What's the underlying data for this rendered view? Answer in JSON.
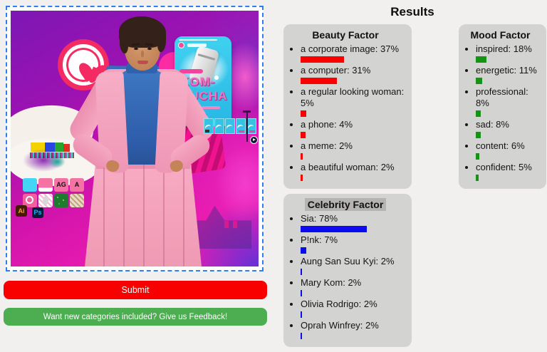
{
  "header": {
    "title": "Results"
  },
  "panels": [
    {
      "id": "beauty",
      "title": "Beauty Factor",
      "bar_color": "#f80100",
      "highlighted": false,
      "items": [
        {
          "label": "a corporate image",
          "pct": 37
        },
        {
          "label": "a computer",
          "pct": 31
        },
        {
          "label": "a regular looking woman",
          "pct": 5
        },
        {
          "label": "a phone",
          "pct": 4
        },
        {
          "label": "a meme",
          "pct": 2
        },
        {
          "label": "a beautiful woman",
          "pct": 2
        }
      ]
    },
    {
      "id": "mood",
      "title": "Mood Factor",
      "bar_color": "#149314",
      "highlighted": false,
      "items": [
        {
          "label": "inspired",
          "pct": 18
        },
        {
          "label": "energetic",
          "pct": 11
        },
        {
          "label": "professional",
          "pct": 8
        },
        {
          "label": "sad",
          "pct": 8
        },
        {
          "label": "content",
          "pct": 6
        },
        {
          "label": "confident",
          "pct": 5
        }
      ]
    },
    {
      "id": "celebrity",
      "title": "Celebrity Factor",
      "bar_color": "#0b0bf0",
      "highlighted": true,
      "items": [
        {
          "label": "Sia",
          "pct": 78
        },
        {
          "label": "P!nk",
          "pct": 7
        },
        {
          "label": "Aung San Suu Kyi",
          "pct": 2
        },
        {
          "label": "Mary Kom",
          "pct": 2
        },
        {
          "label": "Olivia Rodrigo",
          "pct": 2
        },
        {
          "label": "Oprah Winfrey",
          "pct": 2
        }
      ]
    }
  ],
  "buttons": {
    "submit_label": "Submit",
    "submit_color": "#f90000",
    "feedback_label": "Want new categories included? Give us Feedback!",
    "feedback_color": "#4cae51"
  },
  "dropzone": {
    "border_color": "#2e7ef0"
  },
  "collage_text": {
    "kom": "KOM-",
    "bucha": "BUCHA",
    "ag": "AG",
    "a": "A",
    "ai": "Ai",
    "ps": "Ps"
  }
}
